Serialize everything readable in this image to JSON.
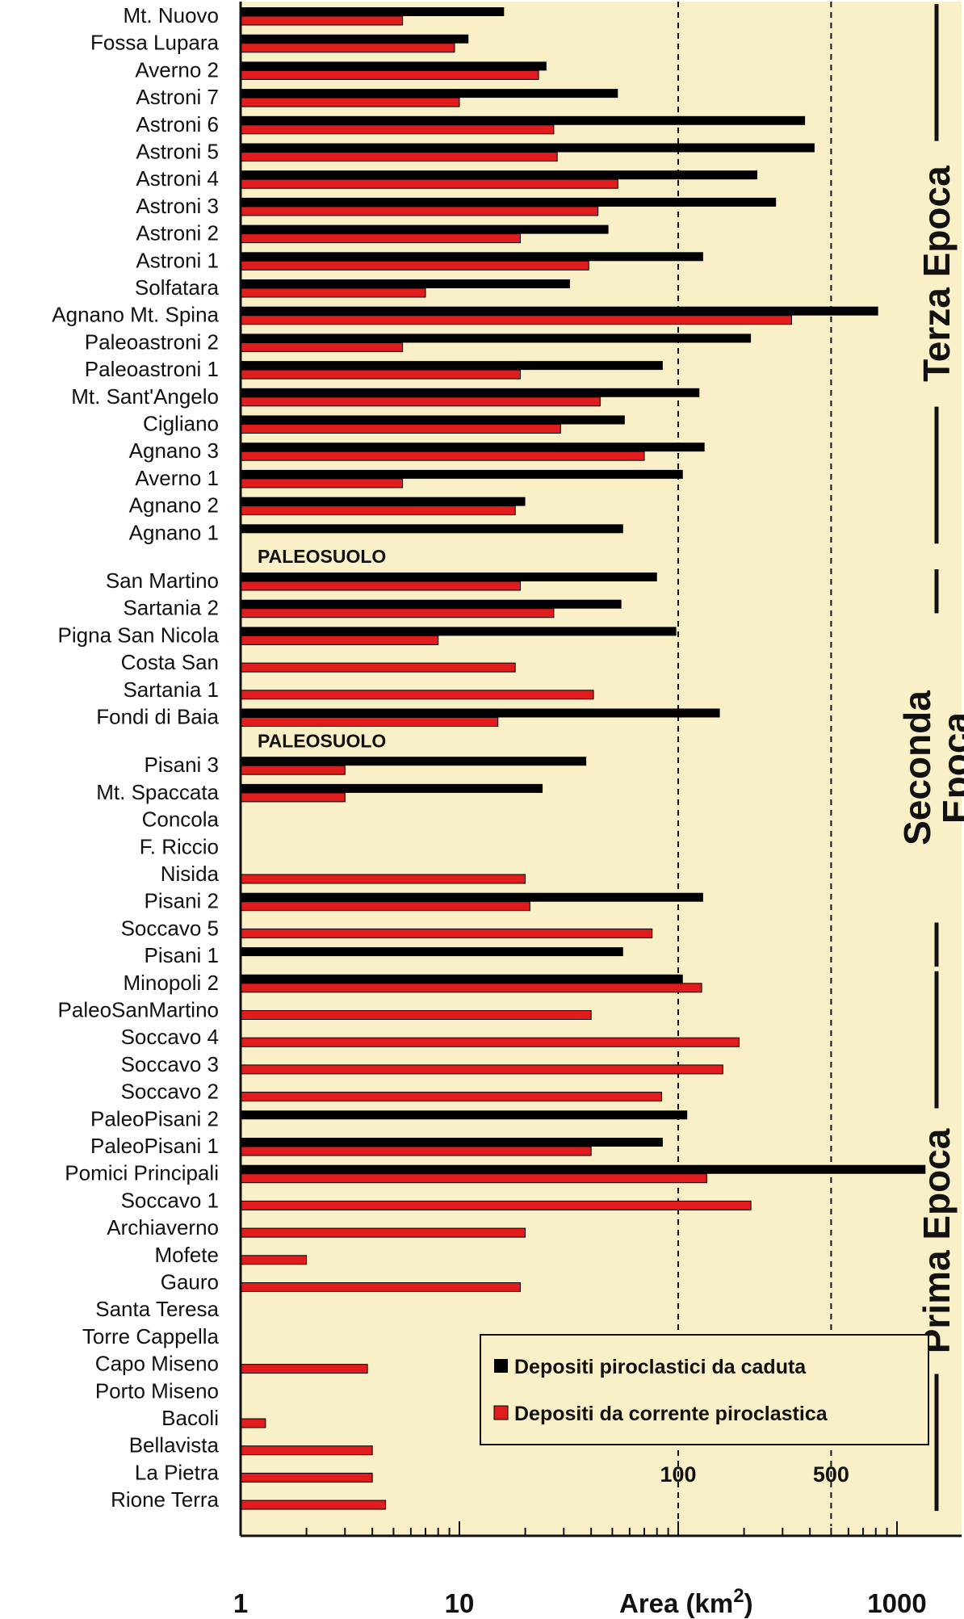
{
  "chart_data": {
    "type": "bar",
    "orientation": "horizontal",
    "x_scale": "log",
    "xlim": [
      1,
      1500
    ],
    "xlabel": "Area (km",
    "xlabel_sup": "2",
    "xlabel_close": ")",
    "x_tick_labels": [
      {
        "value": 1,
        "label": "1"
      },
      {
        "value": 10,
        "label": "10"
      },
      {
        "value": 1000,
        "label": "1000"
      }
    ],
    "reference_lines": [
      {
        "value": 100,
        "label": "100"
      },
      {
        "value": 500,
        "label": "500"
      }
    ],
    "background": "#faf0c8",
    "series": [
      {
        "name": "Depositi piroclastici da caduta",
        "color": "#000000"
      },
      {
        "name": "Depositi da corrente piroclastica",
        "color": "#e11c1c"
      }
    ],
    "legend": {
      "placement": "bottom-right"
    },
    "rows": [
      {
        "label": "Mt. Nuovo",
        "fall": 16,
        "flow": 5.5
      },
      {
        "label": "Fossa Lupara",
        "fall": 11,
        "flow": 9.5
      },
      {
        "label": "Averno 2",
        "fall": 25,
        "flow": 23
      },
      {
        "label": "Astroni 7",
        "fall": 53,
        "flow": 10
      },
      {
        "label": "Astroni 6",
        "fall": 380,
        "flow": 27
      },
      {
        "label": "Astroni 5",
        "fall": 420,
        "flow": 28
      },
      {
        "label": "Astroni 4",
        "fall": 230,
        "flow": 53
      },
      {
        "label": "Astroni 3",
        "fall": 280,
        "flow": 43
      },
      {
        "label": "Astroni 2",
        "fall": 48,
        "flow": 19
      },
      {
        "label": "Astroni 1",
        "fall": 130,
        "flow": 39
      },
      {
        "label": "Solfatara",
        "fall": 32,
        "flow": 7
      },
      {
        "label": "Agnano Mt. Spina",
        "fall": 820,
        "flow": 330
      },
      {
        "label": "Paleoastroni 2",
        "fall": 215,
        "flow": 5.5
      },
      {
        "label": "Paleoastroni 1",
        "fall": 85,
        "flow": 19
      },
      {
        "label": "Mt. Sant'Angelo",
        "fall": 125,
        "flow": 44
      },
      {
        "label": "Cigliano",
        "fall": 57,
        "flow": 29
      },
      {
        "label": "Agnano 3",
        "fall": 132,
        "flow": 70
      },
      {
        "label": "Averno 1",
        "fall": 105,
        "flow": 5.5
      },
      {
        "label": "Agnano 2",
        "fall": 20,
        "flow": 18
      },
      {
        "label": "Agnano 1",
        "fall": 56,
        "flow": null
      },
      {
        "label": "San Martino",
        "fall": 80,
        "flow": 19
      },
      {
        "label": "Sartania 2",
        "fall": 55,
        "flow": 27
      },
      {
        "label": "Pigna San Nicola",
        "fall": 98,
        "flow": 8
      },
      {
        "label": "Costa San",
        "fall": null,
        "flow": 18
      },
      {
        "label": "Sartania 1",
        "fall": null,
        "flow": 41
      },
      {
        "label": "Fondi di Baia",
        "fall": 155,
        "flow": 15
      },
      {
        "label": "Pisani 3",
        "fall": 38,
        "flow": 3
      },
      {
        "label": "Mt. Spaccata",
        "fall": 24,
        "flow": 3
      },
      {
        "label": "Concola",
        "fall": null,
        "flow": null
      },
      {
        "label": "F. Riccio",
        "fall": null,
        "flow": null
      },
      {
        "label": "Nisida",
        "fall": null,
        "flow": 20
      },
      {
        "label": "Pisani 2",
        "fall": 130,
        "flow": 21
      },
      {
        "label": "Soccavo 5",
        "fall": null,
        "flow": 76
      },
      {
        "label": "Pisani 1",
        "fall": 56,
        "flow": null
      },
      {
        "label": "Minopoli 2",
        "fall": 105,
        "flow": 128
      },
      {
        "label": "PaleoSanMartino",
        "fall": null,
        "flow": 40
      },
      {
        "label": "Soccavo 4",
        "fall": null,
        "flow": 190
      },
      {
        "label": "Soccavo 3",
        "fall": null,
        "flow": 160
      },
      {
        "label": "Soccavo 2",
        "fall": null,
        "flow": 84
      },
      {
        "label": "PaleoPisani 2",
        "fall": 110,
        "flow": null
      },
      {
        "label": "PaleoPisani 1",
        "fall": 85,
        "flow": 40
      },
      {
        "label": "Pomici Principali",
        "fall": 1350,
        "flow": 135
      },
      {
        "label": "Soccavo 1",
        "fall": null,
        "flow": 215
      },
      {
        "label": "Archiaverno",
        "fall": null,
        "flow": 20
      },
      {
        "label": "Mofete",
        "fall": null,
        "flow": 2
      },
      {
        "label": "Gauro",
        "fall": null,
        "flow": 19
      },
      {
        "label": "Santa Teresa",
        "fall": null,
        "flow": null
      },
      {
        "label": "Torre Cappella",
        "fall": null,
        "flow": null
      },
      {
        "label": "Capo Miseno",
        "fall": null,
        "flow": 3.8
      },
      {
        "label": "Porto Miseno",
        "fall": null,
        "flow": null
      },
      {
        "label": "Bacoli",
        "fall": null,
        "flow": 1.3
      },
      {
        "label": "Bellavista",
        "fall": null,
        "flow": 4
      },
      {
        "label": "La Pietra",
        "fall": null,
        "flow": 4
      },
      {
        "label": "Rione Terra",
        "fall": null,
        "flow": 4.6
      }
    ],
    "separators": [
      {
        "after": "Agnano 1",
        "label": "PALEOSUOLO"
      },
      {
        "after": "Fondi di Baia",
        "label": "PALEOSUOLO"
      }
    ],
    "epochs": [
      {
        "label": "Terza Epoca",
        "from": "Mt. Nuovo",
        "to": "Agnano 1"
      },
      {
        "label": "Seconda Epoca",
        "from": "San Martino",
        "to": "Pisani 1"
      },
      {
        "label": "Prima Epoca",
        "from": "Minopoli 2",
        "to": "Rione Terra"
      }
    ]
  }
}
